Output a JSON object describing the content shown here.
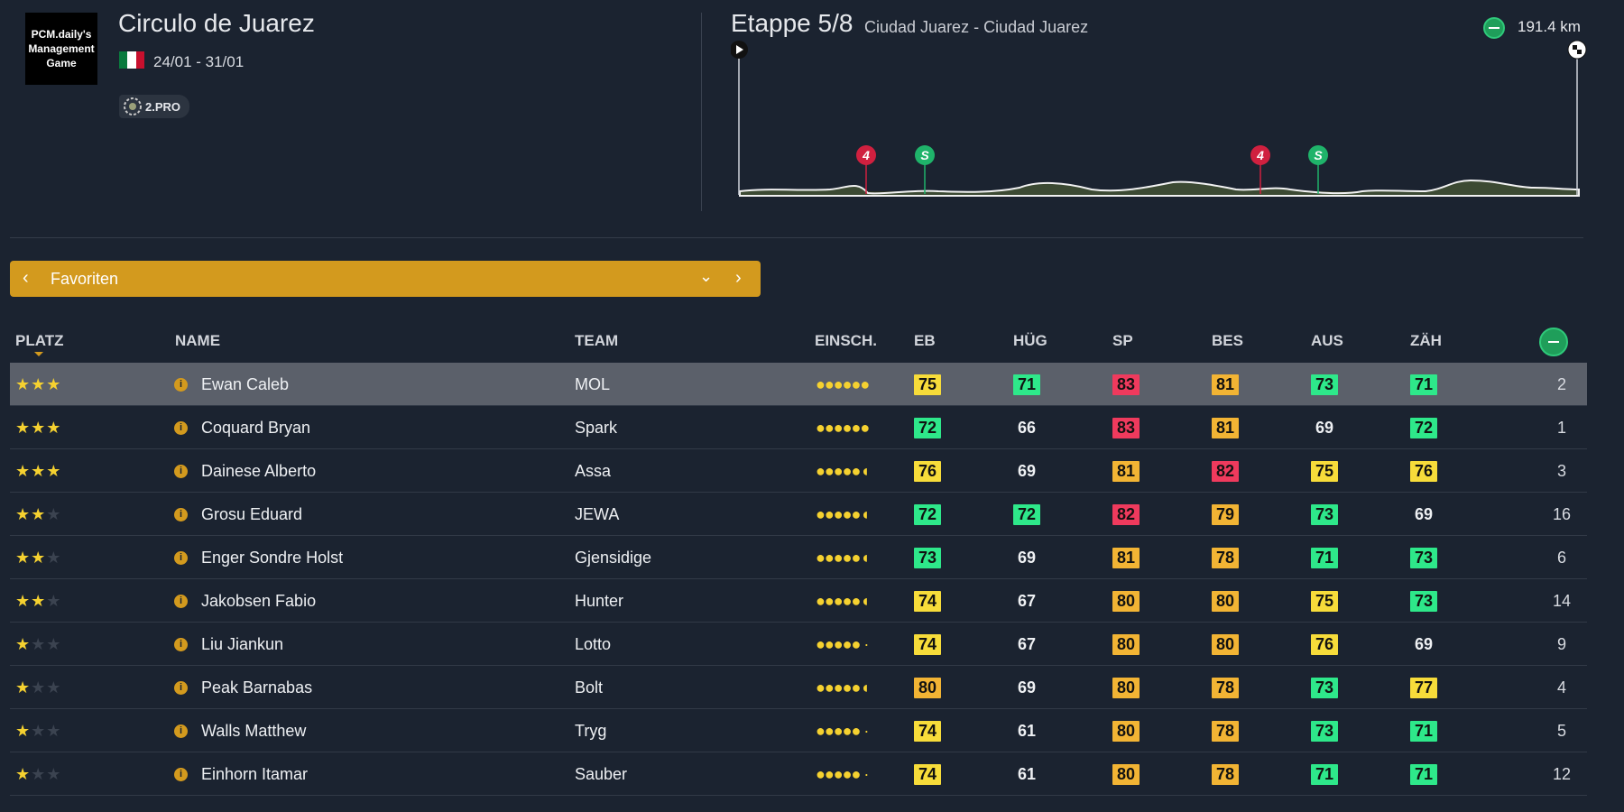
{
  "header": {
    "logo_text": "PCM.daily's Management Game",
    "race_title": "Circulo de Juarez",
    "dates": "24/01 - 31/01",
    "class_badge": "2.PRO",
    "stage_title": "Etappe 5/8",
    "stage_route": "Ciudad Juarez - Ciudad Juarez",
    "distance": "191.4 km",
    "stage_type_icon": "flat-stage-icon",
    "profile_markers": [
      {
        "label": "4",
        "type": "climb",
        "color": "#d0203f"
      },
      {
        "label": "S",
        "type": "sprint",
        "color": "#1fb36a"
      },
      {
        "label": "4",
        "type": "climb",
        "color": "#d0203f"
      },
      {
        "label": "S",
        "type": "sprint",
        "color": "#1fb36a"
      }
    ]
  },
  "filter": {
    "prev_icon": "chevron-left-icon",
    "label": "Favoriten",
    "dropdown_icon": "chevron-down-icon",
    "next_icon": "chevron-right-icon"
  },
  "table": {
    "headers": {
      "platz": "PLATZ",
      "name": "NAME",
      "team": "TEAM",
      "einsch": "EINSCH.",
      "eb": "EB",
      "hug": "HÜG",
      "sp": "SP",
      "bes": "BES",
      "aus": "AUS",
      "zah": "ZÄH"
    },
    "rows": [
      {
        "stars": 3,
        "name": "Ewan Caleb",
        "team": "MOL",
        "fitness": "●●●●●●",
        "eb": "75",
        "hug": "71",
        "sp": "83",
        "bes": "81",
        "aus": "73",
        "zah": "71",
        "rank": "2",
        "selected": true
      },
      {
        "stars": 3,
        "name": "Coquard Bryan",
        "team": "Spark",
        "fitness": "●●●●●●",
        "eb": "72",
        "hug": "66",
        "sp": "83",
        "bes": "81",
        "aus": "69",
        "zah": "72",
        "rank": "1"
      },
      {
        "stars": 3,
        "name": "Dainese Alberto",
        "team": "Assa",
        "fitness": "●●●●●◖",
        "eb": "76",
        "hug": "69",
        "sp": "81",
        "bes": "82",
        "aus": "75",
        "zah": "76",
        "rank": "3"
      },
      {
        "stars": 2,
        "name": "Grosu Eduard",
        "team": "JEWA",
        "fitness": "●●●●●◖",
        "eb": "72",
        "hug": "72",
        "sp": "82",
        "bes": "79",
        "aus": "73",
        "zah": "69",
        "rank": "16"
      },
      {
        "stars": 2,
        "name": "Enger Sondre Holst",
        "team": "Gjensidige",
        "fitness": "●●●●●◖",
        "eb": "73",
        "hug": "69",
        "sp": "81",
        "bes": "78",
        "aus": "71",
        "zah": "73",
        "rank": "6"
      },
      {
        "stars": 2,
        "name": "Jakobsen Fabio",
        "team": "Hunter",
        "fitness": "●●●●●◖",
        "eb": "74",
        "hug": "67",
        "sp": "80",
        "bes": "80",
        "aus": "75",
        "zah": "73",
        "rank": "14"
      },
      {
        "stars": 1,
        "name": "Liu Jiankun",
        "team": "Lotto",
        "fitness": "●●●●● ·",
        "eb": "74",
        "hug": "67",
        "sp": "80",
        "bes": "80",
        "aus": "76",
        "zah": "69",
        "rank": "9"
      },
      {
        "stars": 1,
        "name": "Peak Barnabas",
        "team": "Bolt",
        "fitness": "●●●●●◖",
        "eb": "80",
        "hug": "69",
        "sp": "80",
        "bes": "78",
        "aus": "73",
        "zah": "77",
        "rank": "4"
      },
      {
        "stars": 1,
        "name": "Walls Matthew",
        "team": "Tryg",
        "fitness": "●●●●● ·",
        "eb": "74",
        "hug": "61",
        "sp": "80",
        "bes": "78",
        "aus": "73",
        "zah": "71",
        "rank": "5"
      },
      {
        "stars": 1,
        "name": "Einhorn Itamar",
        "team": "Sauber",
        "fitness": "●●●●● ·",
        "eb": "74",
        "hug": "61",
        "sp": "80",
        "bes": "78",
        "aus": "71",
        "zah": "71",
        "rank": "12"
      }
    ]
  },
  "colors": {
    "background": "#1b2330",
    "accent": "#d39a1e",
    "rating_green": "#2ee88a",
    "rating_yellow": "#f7dc3a",
    "rating_orange": "#f2b434",
    "rating_red": "#ef3a5d"
  }
}
